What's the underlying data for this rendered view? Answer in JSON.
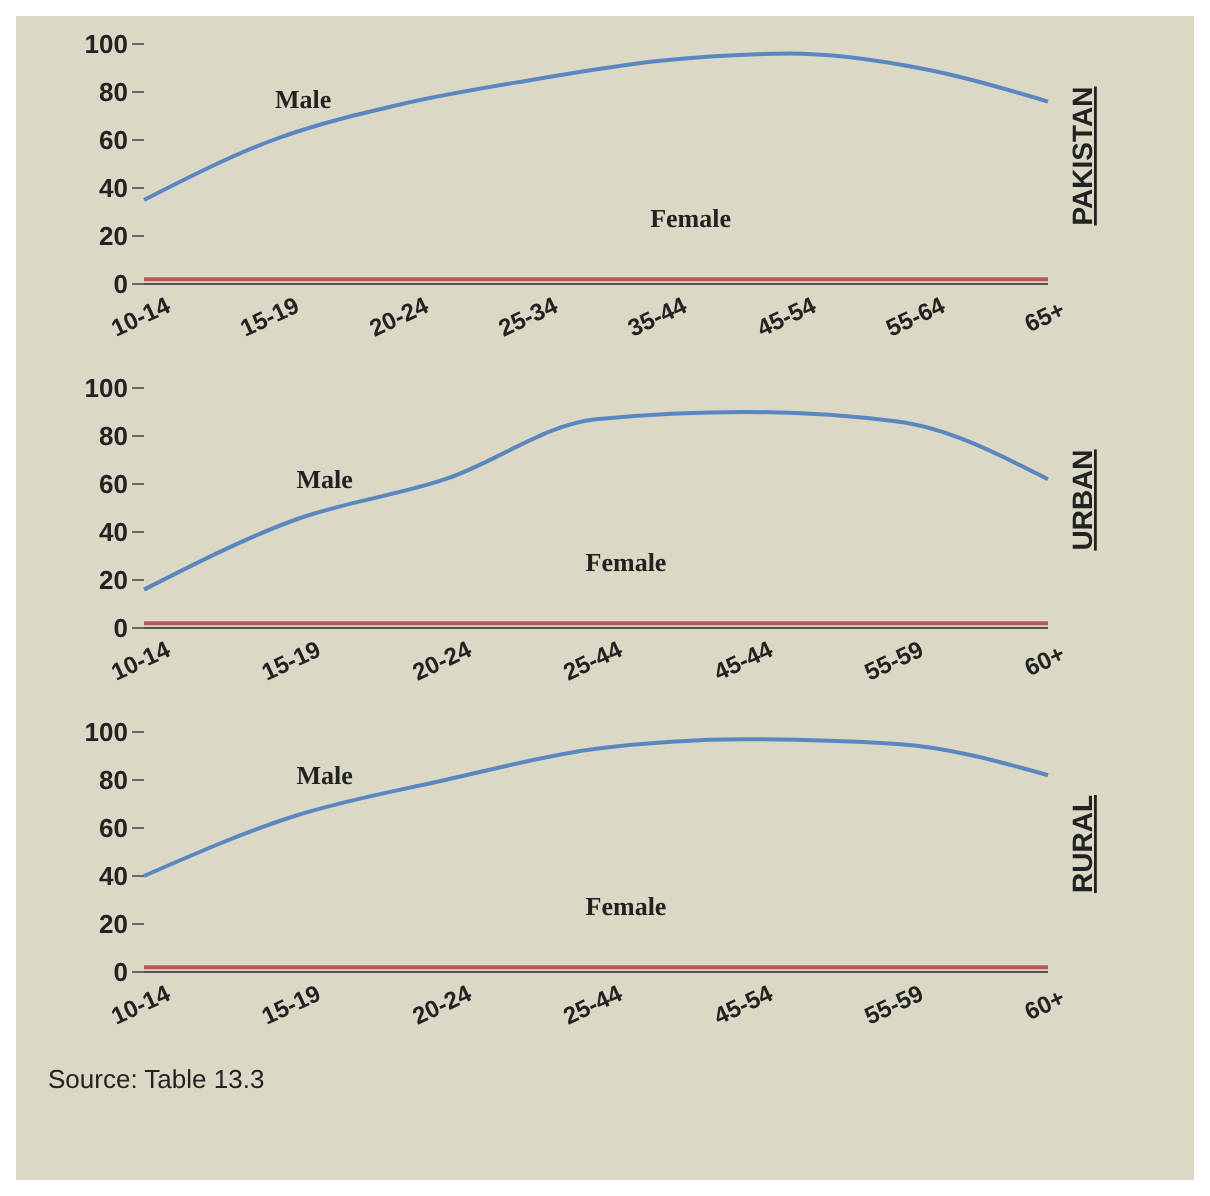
{
  "chart_data": [
    {
      "type": "line",
      "title": "PAKISTAN",
      "categories": [
        "10-14",
        "15-19",
        "20-24",
        "25-34",
        "35-44",
        "45-54",
        "55-64",
        "65+"
      ],
      "ylim": [
        0,
        100
      ],
      "yticks": [
        0,
        20,
        40,
        60,
        80,
        100
      ],
      "grid": false,
      "legend": false,
      "marker": "none",
      "series": [
        {
          "name": "Male",
          "color": "#5b87c0",
          "values": [
            35,
            60,
            75,
            85,
            93,
            96,
            90,
            76
          ]
        },
        {
          "name": "Female",
          "color": "#b85a5a",
          "values": [
            2,
            2,
            2,
            2,
            2,
            2,
            2,
            2
          ]
        }
      ]
    },
    {
      "type": "line",
      "title": "URBAN",
      "categories": [
        "10-14",
        "15-19",
        "20-24",
        "25-44",
        "45-44",
        "55-59",
        "60+"
      ],
      "ylim": [
        0,
        100
      ],
      "yticks": [
        0,
        20,
        40,
        60,
        80,
        100
      ],
      "grid": false,
      "legend": false,
      "marker": "none",
      "series": [
        {
          "name": "Male",
          "color": "#5b87c0",
          "values": [
            16,
            45,
            62,
            87,
            90,
            86,
            62
          ]
        },
        {
          "name": "Female",
          "color": "#b85a5a",
          "values": [
            2,
            2,
            2,
            2,
            2,
            2,
            2
          ]
        }
      ]
    },
    {
      "type": "line",
      "title": "RURAL",
      "categories": [
        "10-14",
        "15-19",
        "20-24",
        "25-44",
        "45-54",
        "55-59",
        "60+"
      ],
      "ylim": [
        0,
        100
      ],
      "yticks": [
        0,
        20,
        40,
        60,
        80,
        100
      ],
      "grid": false,
      "legend": false,
      "marker": "none",
      "annotations": [
        "Source: Table 13.3"
      ],
      "series": [
        {
          "name": "Male",
          "color": "#5b87c0",
          "values": [
            40,
            65,
            80,
            93,
            97,
            95,
            82
          ]
        },
        {
          "name": "Female",
          "color": "#b85a5a",
          "values": [
            2,
            2,
            2,
            2,
            2,
            2,
            2
          ]
        }
      ]
    }
  ]
}
